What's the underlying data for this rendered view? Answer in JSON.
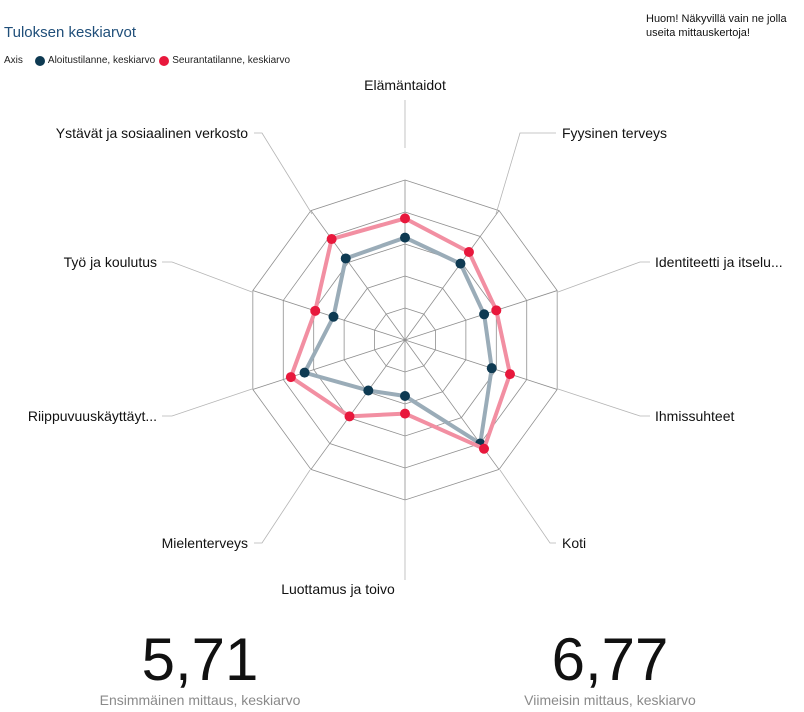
{
  "header": {
    "title": "Tuloksen keskiarvot",
    "note": "Huom! Näkyvillä vain ne jolla useita mittauskertoja!"
  },
  "legend": {
    "axis_label": "Axis",
    "items": [
      {
        "label": "Aloitustilanne, keskiarvo",
        "color": "#0e3a52"
      },
      {
        "label": "Seurantatilanne, keskiarvo",
        "color": "#e8183c"
      }
    ]
  },
  "chart_data": {
    "type": "radar",
    "axes": [
      "Elämäntaidot",
      "Fyysinen terveys",
      "Identiteetti ja itselu...",
      "Ihmissuhteet",
      "Koti",
      "Luottamus ja toivo",
      "Mielenterveys",
      "Riippuvuuskäyttäyt...",
      "Työ ja koulutus",
      "Ystävät ja sosiaalinen verkosto"
    ],
    "range": [
      0,
      10
    ],
    "rings": 5,
    "series": [
      {
        "name": "Aloitustilanne, keskiarvo",
        "color": "#0e3a52",
        "line_color": "#9aacb8",
        "values": [
          6.4,
          5.9,
          5.2,
          5.7,
          8.0,
          3.5,
          3.9,
          6.6,
          4.7,
          6.3
        ]
      },
      {
        "name": "Seurantatilanne, keskiarvo",
        "color": "#e8183c",
        "line_color": "#f28fa2",
        "values": [
          7.6,
          6.8,
          6.0,
          6.9,
          8.4,
          4.6,
          5.9,
          7.5,
          5.9,
          7.8
        ]
      }
    ]
  },
  "kpis": [
    {
      "value": "5,71",
      "label": "Ensimmäinen mittaus, keskiarvo"
    },
    {
      "value": "6,77",
      "label": "Viimeisin mittaus, keskiarvo"
    }
  ]
}
